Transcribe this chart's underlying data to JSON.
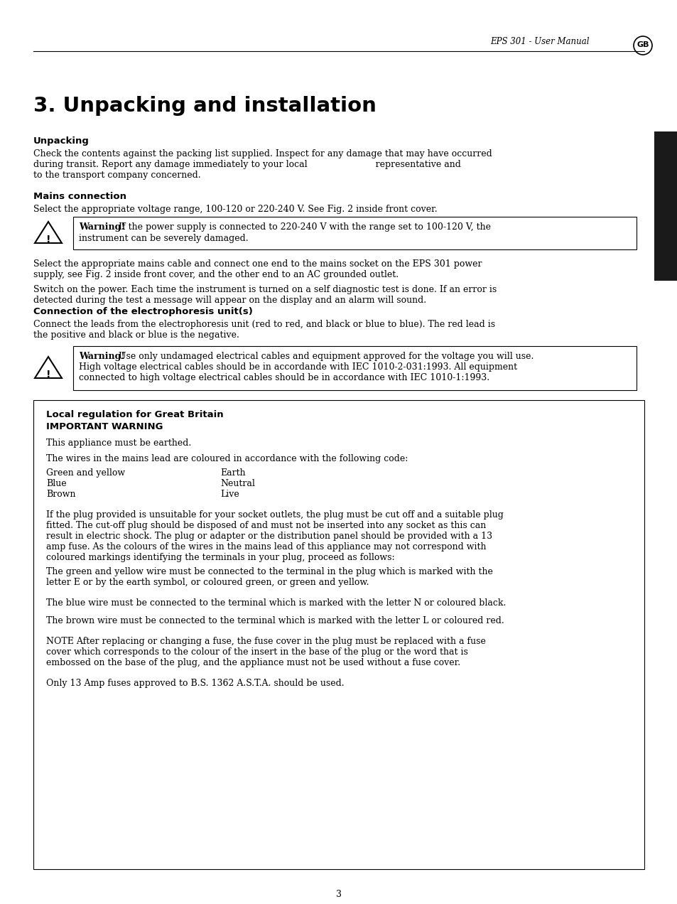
{
  "bg_color": "#ffffff",
  "header_text": "EPS 301 - User Manual",
  "page_number": "3",
  "title": "3. Unpacking and installation",
  "section1_heading": "Unpacking",
  "section1_body1": "Check the contents against the packing list supplied. Inspect for any damage that may have occurred",
  "section1_body2": "during transit. Report any damage immediately to your local                        representative and",
  "section1_body3": "to the transport company concerned.",
  "section2_heading": "Mains connection",
  "section2_body": "Select the appropriate voltage range, 100-120 or 220-240 V. See Fig. 2 inside front cover.",
  "warning1_bold": "Warning!",
  "warning1_rest": " If the power supply is connected to 220-240 V with the range set to 100-120 V, the",
  "warning1_line2": "instrument can be severely damaged.",
  "section2_body2a": "Select the appropriate mains cable and connect one end to the mains socket on the EPS 301 power",
  "section2_body2b": "supply, see Fig. 2 inside front cover, and the other end to an AC grounded outlet.",
  "section2_body3a": "Switch on the power. Each time the instrument is turned on a self diagnostic test is done. If an error is",
  "section2_body3b": "detected during the test a message will appear on the display and an alarm will sound.",
  "section3_heading": "Connection of the electrophoresis unit(s)",
  "section3_body1": "Connect the leads from the electrophoresis unit (red to red, and black or blue to blue). The red lead is",
  "section3_body2": "the positive and black or blue is the negative.",
  "warning2_bold": "Warning!",
  "warning2_rest": " Use only undamaged electrical cables and equipment approved for the voltage you will use.",
  "warning2_line2": "High voltage electrical cables should be in accordande with IEC 1010-2-031:1993. All equipment",
  "warning2_line3": "connected to high voltage electrical cables should be in accordance with IEC 1010-1:1993.",
  "local_reg_heading1": "Local regulation for Great Britain",
  "local_reg_heading2": "IMPORTANT WARNING",
  "local_reg_body1": "This appliance must be earthed.",
  "local_reg_body2": "The wires in the mains lead are coloured in accordance with the following code:",
  "wire_col1": [
    "Green and yellow",
    "Blue",
    "Brown"
  ],
  "wire_col2": [
    "Earth",
    "Neutral",
    "Live"
  ],
  "local_reg_body3a": "If the plug provided is unsuitable for your socket outlets, the plug must be cut off and a suitable plug",
  "local_reg_body3b": "fitted. The cut-off plug should be disposed of and must not be inserted into any socket as this can",
  "local_reg_body3c": "result in electric shock. The plug or adapter or the distribution panel should be provided with a 13",
  "local_reg_body3d": "amp fuse. As the colours of the wires in the mains lead of this appliance may not correspond with",
  "local_reg_body3e": "coloured markings identifying the terminals in your plug, proceed as follows:",
  "local_reg_body4a": "The green and yellow wire must be connected to the terminal in the plug which is marked with the",
  "local_reg_body4b": "letter E or by the earth symbol, or coloured green, or green and yellow.",
  "local_reg_body5": "The blue wire must be connected to the terminal which is marked with the letter N or coloured black.",
  "local_reg_body6": "The brown wire must be connected to the terminal which is marked with the letter L or coloured red.",
  "local_reg_body7a": "NOTE After replacing or changing a fuse, the fuse cover in the plug must be replaced with a fuse",
  "local_reg_body7b": "cover which corresponds to the colour of the insert in the base of the plug or the word that is",
  "local_reg_body7c": "embossed on the base of the plug, and the appliance must not be used without a fuse cover.",
  "local_reg_body8": "Only 13 Amp fuses approved to B.S. 1362 A.S.T.A. should be used."
}
